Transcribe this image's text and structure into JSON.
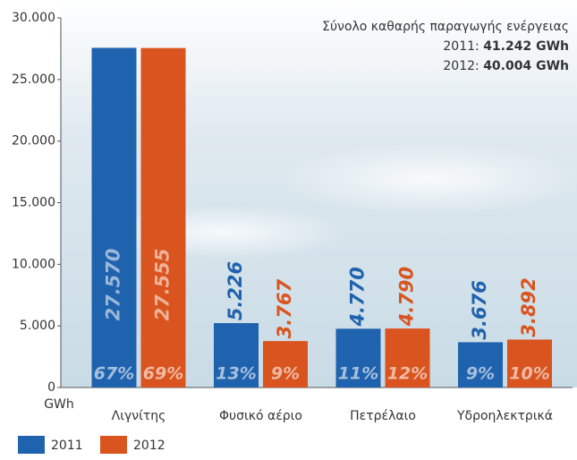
{
  "chart_data": {
    "type": "bar",
    "categories": [
      "Λιγνίτης",
      "Φυσικό αέριο",
      "Πετρέλαιο",
      "Υδροηλεκτρικά"
    ],
    "series": [
      {
        "name": "2011",
        "color": "#1f62ad",
        "values": [
          27570,
          5226,
          4770,
          3676
        ],
        "value_labels": [
          "27.570",
          "5.226",
          "4.770",
          "3.676"
        ],
        "share_labels": [
          "67%",
          "13%",
          "11%",
          "9%"
        ]
      },
      {
        "name": "2012",
        "color": "#d9541e",
        "values": [
          27555,
          3767,
          4790,
          3892
        ],
        "value_labels": [
          "27.555",
          "3.767",
          "4.790",
          "3.892"
        ],
        "share_labels": [
          "69%",
          "9%",
          "12%",
          "10%"
        ]
      }
    ],
    "ylim": [
      0,
      30000
    ],
    "yticks": [
      0,
      {
        "value": 5000,
        "label": "5.000"
      },
      {
        "value": 10000,
        "label": "10.000"
      },
      {
        "value": 15000,
        "label": "15.000"
      },
      {
        "value": 20000,
        "label": "20.000"
      },
      {
        "value": 25000,
        "label": "25.000"
      },
      {
        "value": 30000,
        "label": "30.000"
      }
    ],
    "y_unit": "GWh",
    "annotation": {
      "title": "Σύνολο καθαρής παραγωγής ενέργειας",
      "lines": [
        {
          "label": "2011:",
          "value": "41.242 GWh"
        },
        {
          "label": "2012:",
          "value": "40.004 GWh"
        }
      ]
    }
  }
}
